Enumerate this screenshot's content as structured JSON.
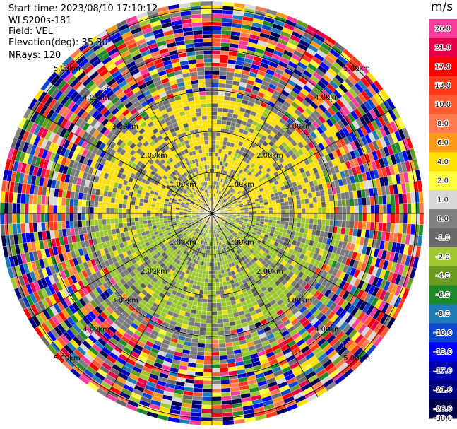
{
  "header": {
    "start_time": "Start time: 2023/08/10 17:10:12",
    "instrument": "WLS200s-181",
    "field": "Field: VEL",
    "elevation": "Elevation(deg): 35.30",
    "nrays": "NRays: 120"
  },
  "ring_labels": [
    "1.00km",
    "2.00km",
    "3.00km",
    "4.00km",
    "5.00km"
  ],
  "colorbar": {
    "unit": "m/s",
    "ticks": [
      "26.0",
      "21.0",
      "17.0",
      "13.0",
      "10.0",
      "8.0",
      "6.0",
      "4.0",
      "2.0",
      "1.0",
      "0.0",
      "-1.0",
      "-2.0",
      "-4.0",
      "-6.0",
      "-8.0",
      "-10.0",
      "-13.0",
      "-17.0",
      "-21.0",
      "-26.0",
      "-30.0"
    ],
    "colors": [
      "#fb3c9c",
      "#e8004a",
      "#ff0000",
      "#ff3a1a",
      "#ff5a30",
      "#ff7a50",
      "#ff9a1a",
      "#ffe000",
      "#ffff40",
      "#d8d8d8",
      "#808080",
      "#686868",
      "#a0c830",
      "#6a9a20",
      "#1f8a2a",
      "#1f7ab8",
      "#0a46d0",
      "#0000ff",
      "#0000b0",
      "#000080",
      "#00004a"
    ]
  }
}
